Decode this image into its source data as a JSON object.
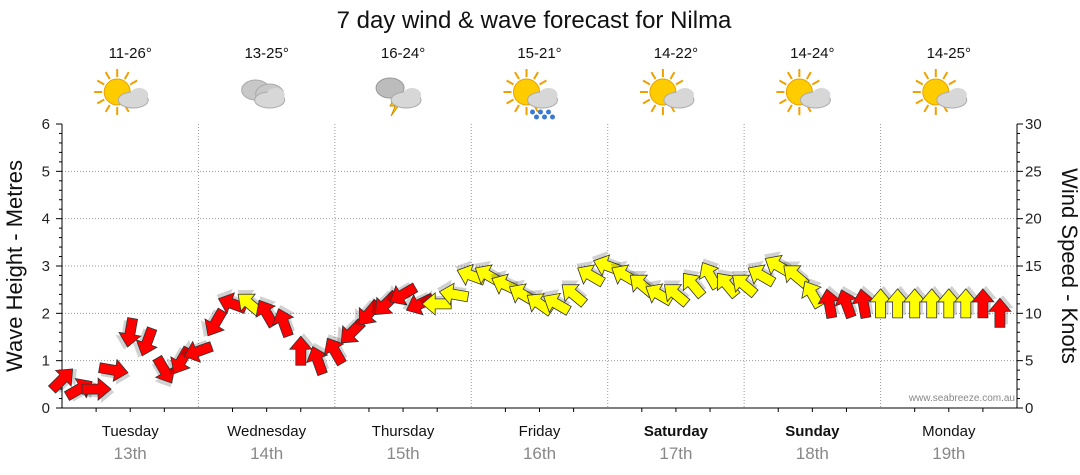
{
  "chart_data": {
    "type": "line",
    "title": "7 day wind & wave forecast for Nilma",
    "ylabel_left": "Wave Height - Metres",
    "ylabel_right": "Wind Speed - Knots",
    "ylim_left": [
      0,
      6
    ],
    "ylim_right": [
      0,
      30
    ],
    "left_ticks": [
      "0",
      "1",
      "2",
      "3",
      "4",
      "5",
      "6"
    ],
    "right_ticks": [
      "0",
      "5",
      "10",
      "15",
      "20",
      "25",
      "30"
    ],
    "grid": true,
    "watermark": "www.seabreeze.com.au",
    "days": [
      {
        "name": "Tuesday",
        "date": "13th",
        "temp": "11-26°",
        "weather_icon": "partly-cloudy-icon",
        "bold": false
      },
      {
        "name": "Wednesday",
        "date": "14th",
        "temp": "13-25°",
        "weather_icon": "cloudy-icon",
        "bold": false
      },
      {
        "name": "Thursday",
        "date": "15th",
        "temp": "16-24°",
        "weather_icon": "thunderstorm-icon",
        "bold": false
      },
      {
        "name": "Friday",
        "date": "16th",
        "temp": "15-21°",
        "weather_icon": "showers-icon",
        "bold": false
      },
      {
        "name": "Saturday",
        "date": "17th",
        "temp": "14-22°",
        "weather_icon": "partly-cloudy-icon",
        "bold": true
      },
      {
        "name": "Sunday",
        "date": "18th",
        "temp": "14-24°",
        "weather_icon": "partly-cloudy-icon",
        "bold": true
      },
      {
        "name": "Monday",
        "date": "19th",
        "temp": "14-25°",
        "weather_icon": "partly-cloudy-icon",
        "bold": false
      }
    ],
    "colors": {
      "onshore": "#ff0000",
      "offshore": "#ffff00",
      "arrow_stroke": "#333333",
      "grid": "#999999"
    },
    "series": [
      {
        "name": "Wind Speed - Knots",
        "x_hours": [
          0,
          3,
          6,
          9,
          12,
          15,
          18,
          21,
          24,
          27,
          30,
          33,
          36,
          39,
          42,
          45,
          48,
          51,
          54,
          57,
          60,
          63,
          66,
          69,
          72,
          75,
          78,
          81,
          84,
          87,
          90,
          93,
          96,
          99,
          102,
          105,
          108,
          111,
          114,
          117,
          120,
          123,
          126,
          129,
          132,
          135,
          138,
          141,
          144,
          147,
          150,
          153,
          156,
          159,
          162,
          165
        ],
        "values": [
          3,
          2,
          2,
          4,
          8,
          7,
          4,
          5,
          6,
          9,
          11,
          11,
          10,
          9,
          6,
          5,
          6,
          8,
          10,
          11,
          12,
          11,
          11,
          12,
          14,
          14,
          13,
          12,
          11,
          11,
          12,
          14,
          15,
          14,
          13,
          12,
          12,
          13,
          14,
          13,
          13,
          14,
          15,
          14,
          12,
          11,
          11,
          11,
          11,
          11,
          11,
          11,
          11,
          11,
          11,
          10
        ],
        "directions_deg": [
          225,
          210,
          180,
          170,
          80,
          70,
          120,
          60,
          20,
          60,
          340,
          320,
          300,
          290,
          270,
          290,
          300,
          45,
          50,
          45,
          30,
          25,
          0,
          350,
          340,
          330,
          335,
          330,
          325,
          330,
          320,
          330,
          340,
          330,
          320,
          330,
          320,
          310,
          300,
          310,
          320,
          330,
          330,
          320,
          300,
          280,
          290,
          280,
          270,
          270,
          270,
          270,
          270,
          270,
          270,
          270
        ],
        "colors": [
          "red",
          "red",
          "red",
          "red",
          "red",
          "red",
          "red",
          "red",
          "red",
          "red",
          "red",
          "yellow",
          "red",
          "red",
          "red",
          "red",
          "red",
          "red",
          "red",
          "red",
          "red",
          "red",
          "yellow",
          "yellow",
          "yellow",
          "yellow",
          "yellow",
          "yellow",
          "yellow",
          "yellow",
          "yellow",
          "yellow",
          "yellow",
          "yellow",
          "yellow",
          "yellow",
          "yellow",
          "yellow",
          "yellow",
          "yellow",
          "yellow",
          "yellow",
          "yellow",
          "yellow",
          "yellow",
          "red",
          "red",
          "red",
          "yellow",
          "yellow",
          "yellow",
          "yellow",
          "yellow",
          "yellow",
          "red",
          "red"
        ]
      }
    ]
  }
}
